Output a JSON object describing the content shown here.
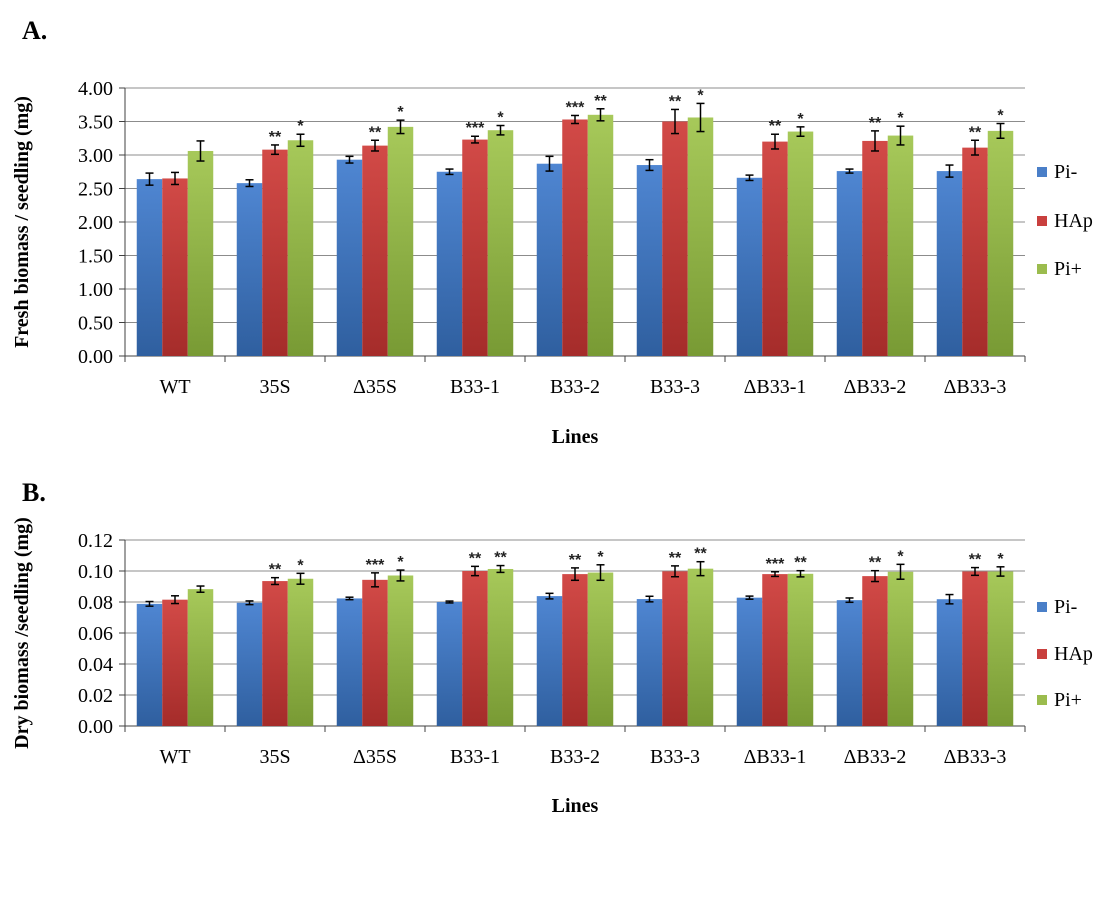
{
  "colors": {
    "Pi-": "#4a7fc8",
    "HAp": "#c9403e",
    "Pi+": "#9bbc4e",
    "grid": "#8c8c8c",
    "axis": "#404040"
  },
  "chart_data": [
    {
      "panel_label": "A.",
      "type": "bar",
      "categories": [
        "WT",
        "35S",
        "Δ35S",
        "B33-1",
        "B33-2",
        "B33-3",
        "ΔB33-1",
        "ΔB33-2",
        "ΔB33-3"
      ],
      "series": [
        {
          "name": "Pi-",
          "values": [
            2.64,
            2.58,
            2.93,
            2.75,
            2.87,
            2.85,
            2.66,
            2.76,
            2.76
          ],
          "errors": [
            0.09,
            0.05,
            0.05,
            0.04,
            0.11,
            0.08,
            0.04,
            0.03,
            0.09
          ]
        },
        {
          "name": "HAp",
          "values": [
            2.65,
            3.08,
            3.14,
            3.23,
            3.53,
            3.5,
            3.2,
            3.21,
            3.11
          ],
          "errors": [
            0.09,
            0.07,
            0.08,
            0.05,
            0.06,
            0.18,
            0.11,
            0.15,
            0.11
          ]
        },
        {
          "name": "Pi+",
          "values": [
            3.06,
            3.22,
            3.42,
            3.37,
            3.6,
            3.56,
            3.35,
            3.29,
            3.36
          ],
          "errors": [
            0.15,
            0.09,
            0.1,
            0.07,
            0.09,
            0.21,
            0.07,
            0.14,
            0.11
          ]
        }
      ],
      "significance": {
        "HAp": [
          "",
          "**",
          "**",
          "***",
          "***",
          "**",
          "**",
          "**",
          "**"
        ],
        "Pi+": [
          "",
          "*",
          "*",
          "*",
          "**",
          "*",
          "*",
          "*",
          "*"
        ]
      },
      "xlabel": "Lines",
      "ylabel": "Fresh biomass / seedling (mg)",
      "ylim": [
        0,
        4
      ],
      "yticks": [
        "0.00",
        "0.50",
        "1.00",
        "1.50",
        "2.00",
        "2.50",
        "3.00",
        "3.50",
        "4.00"
      ],
      "grid": true,
      "legend": "right"
    },
    {
      "panel_label": "B.",
      "type": "bar",
      "categories": [
        "WT",
        "35S",
        "Δ35S",
        "B33-1",
        "B33-2",
        "B33-3",
        "ΔB33-1",
        "ΔB33-2",
        "ΔB33-3"
      ],
      "series": [
        {
          "name": "Pi-",
          "values": [
            0.0788,
            0.0795,
            0.0823,
            0.08,
            0.0838,
            0.0819,
            0.0828,
            0.0812,
            0.0818
          ],
          "errors": [
            0.0015,
            0.0012,
            0.0008,
            0.0006,
            0.0018,
            0.0018,
            0.001,
            0.0014,
            0.003
          ]
        },
        {
          "name": "HAp",
          "values": [
            0.0815,
            0.0935,
            0.0943,
            0.1,
            0.098,
            0.0998,
            0.098,
            0.0967,
            0.0997
          ],
          "errors": [
            0.0025,
            0.0022,
            0.0045,
            0.003,
            0.004,
            0.0035,
            0.0015,
            0.0035,
            0.0025
          ]
        },
        {
          "name": "Pi+",
          "values": [
            0.0883,
            0.095,
            0.0971,
            0.1013,
            0.099,
            0.1015,
            0.0982,
            0.0995,
            0.0997
          ],
          "errors": [
            0.002,
            0.0035,
            0.0035,
            0.0022,
            0.005,
            0.0045,
            0.002,
            0.0048,
            0.003
          ]
        }
      ],
      "significance": {
        "HAp": [
          "",
          "**",
          "***",
          "**",
          "**",
          "**",
          "***",
          "**",
          "**"
        ],
        "Pi+": [
          "",
          "*",
          "*",
          "**",
          "*",
          "**",
          "**",
          "*",
          "*"
        ]
      },
      "xlabel": "Lines",
      "ylabel": "Dry biomass /seedling (mg)",
      "ylim": [
        0,
        0.12
      ],
      "yticks": [
        "0.00",
        "0.02",
        "0.04",
        "0.06",
        "0.08",
        "0.10",
        "0.12"
      ],
      "grid": true,
      "legend": "right"
    }
  ]
}
